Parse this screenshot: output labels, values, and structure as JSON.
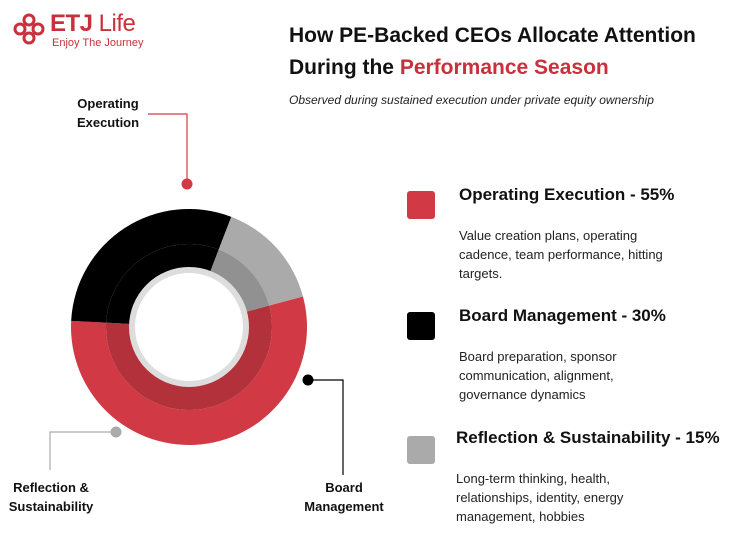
{
  "brand": {
    "name_bold": "ETJ",
    "name_light": " Life",
    "tagline": "Enjoy The Journey",
    "color": "#c8313c"
  },
  "heading": {
    "title_line1": "How PE-Backed CEOs Allocate Attention",
    "title_line2_prefix": "During the ",
    "title_line2_accent": "Performance Season",
    "subtitle": "Observed during sustained execution under private equity ownership"
  },
  "chart_data": {
    "type": "pie",
    "categories": [
      "Operating Execution",
      "Board Management",
      "Reflection & Sustainability"
    ],
    "values": [
      55,
      30,
      15
    ],
    "colors": [
      "#d13a45",
      "#000000",
      "#aaaaaa"
    ],
    "callouts": [
      {
        "line1": "Operating",
        "line2": "Execution"
      },
      {
        "line1": "Board",
        "line2": "Management"
      },
      {
        "line1": "Reflection &",
        "line2": "Sustainability"
      }
    ],
    "legend": [
      {
        "title": "Operating Execution - 55%",
        "description": "Value creation plans, operating cadence, team performance, hitting targets."
      },
      {
        "title": "Board Management - 30%",
        "description": "Board preparation, sponsor communication, alignment, governance dynamics"
      },
      {
        "title": "Reflection & Sustainability - 15%",
        "description": "Long-term thinking, health, relationships, identity, energy management, hobbies"
      }
    ]
  }
}
